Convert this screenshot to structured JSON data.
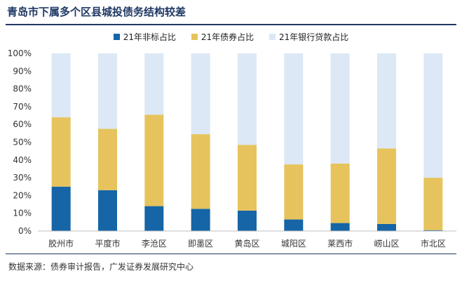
{
  "chart_data": {
    "type": "bar",
    "stacked": true,
    "title": "青岛市下属多个区县城投债务结构较差",
    "categories": [
      "胶州市",
      "平度市",
      "李沧区",
      "即墨区",
      "黄岛区",
      "城阳区",
      "莱西市",
      "崂山区",
      "市北区"
    ],
    "series": [
      {
        "name": "21年非标占比",
        "color": "#1565a7",
        "values": [
          25,
          23,
          14,
          12.5,
          11.5,
          6.5,
          4.5,
          4,
          0.5
        ]
      },
      {
        "name": "21年债券占比",
        "color": "#e6c35c",
        "values": [
          39,
          34.5,
          51.5,
          42,
          37,
          31,
          33.5,
          42.5,
          29.5
        ]
      },
      {
        "name": "21年银行贷款占比",
        "color": "#dce8f5",
        "values": [
          36,
          42.5,
          34.5,
          45.5,
          51.5,
          62.5,
          62,
          53.5,
          70
        ]
      }
    ],
    "ylim": [
      0,
      100
    ],
    "yticks": [
      "0%",
      "10%",
      "20%",
      "30%",
      "40%",
      "50%",
      "60%",
      "70%",
      "80%",
      "90%",
      "100%"
    ],
    "legend_position": "top"
  },
  "source": "数据来源：债券审计报告，广发证券发展研究中心"
}
